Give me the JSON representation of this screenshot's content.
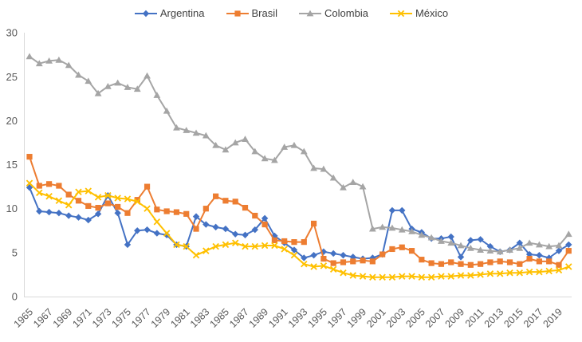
{
  "chart_data": {
    "type": "line",
    "title": "",
    "xlabel": "",
    "ylabel": "",
    "ylim": [
      0,
      30
    ],
    "y_ticks": [
      0,
      5,
      10,
      15,
      20,
      25,
      30
    ],
    "grid": false,
    "legend_position": "top-center",
    "axis_line_color": "#d9d9d9",
    "tick_label_color": "#595959",
    "legend_text_color": "#404040",
    "x": [
      1965,
      1966,
      1967,
      1968,
      1969,
      1970,
      1971,
      1972,
      1973,
      1974,
      1975,
      1976,
      1977,
      1978,
      1979,
      1980,
      1981,
      1982,
      1983,
      1984,
      1985,
      1986,
      1987,
      1988,
      1989,
      1990,
      1991,
      1992,
      1993,
      1994,
      1995,
      1996,
      1997,
      1998,
      1999,
      2000,
      2001,
      2002,
      2003,
      2004,
      2005,
      2006,
      2007,
      2008,
      2009,
      2010,
      2011,
      2012,
      2013,
      2014,
      2015,
      2016,
      2017,
      2018,
      2019,
      2020
    ],
    "x_tick_labels": [
      "1965",
      "1967",
      "1969",
      "1971",
      "1973",
      "1975",
      "1977",
      "1979",
      "1981",
      "1983",
      "1985",
      "1987",
      "1989",
      "1991",
      "1993",
      "1995",
      "1997",
      "1999",
      "2001",
      "2003",
      "2005",
      "2007",
      "2009",
      "2011",
      "2013",
      "2015",
      "2017",
      "2019"
    ],
    "series": [
      {
        "name": "Argentina",
        "color": "#4472c4",
        "marker": "diamond",
        "values": [
          12.4,
          9.7,
          9.6,
          9.5,
          9.2,
          9.0,
          8.7,
          9.4,
          11.5,
          9.5,
          5.9,
          7.5,
          7.6,
          7.2,
          7.0,
          5.9,
          5.7,
          9.1,
          8.2,
          7.9,
          7.7,
          7.1,
          7.0,
          7.6,
          8.9,
          6.9,
          6.1,
          5.3,
          4.4,
          4.7,
          5.1,
          4.9,
          4.7,
          4.5,
          4.3,
          4.4,
          4.8,
          9.8,
          9.8,
          7.7,
          7.3,
          6.6,
          6.6,
          6.8,
          4.5,
          6.4,
          6.5,
          5.7,
          5.1,
          5.3,
          6.1,
          4.8,
          4.7,
          4.4,
          5.2,
          5.9
        ]
      },
      {
        "name": "Brasil",
        "color": "#ed7d31",
        "marker": "square",
        "values": [
          15.9,
          12.6,
          12.8,
          12.6,
          11.6,
          10.9,
          10.3,
          10.1,
          10.6,
          10.2,
          9.5,
          11.0,
          12.5,
          9.9,
          9.7,
          9.6,
          9.4,
          7.7,
          10.0,
          11.4,
          10.9,
          10.8,
          10.1,
          9.2,
          8.2,
          6.4,
          6.3,
          6.2,
          6.2,
          8.3,
          4.3,
          3.8,
          3.9,
          4.0,
          4.1,
          4.0,
          4.8,
          5.4,
          5.6,
          5.2,
          4.2,
          3.8,
          3.7,
          3.9,
          3.7,
          3.6,
          3.7,
          3.9,
          4.0,
          3.9,
          3.7,
          4.3,
          4.0,
          4.0,
          3.6,
          5.2
        ]
      },
      {
        "name": "Colombia",
        "color": "#a5a5a5",
        "marker": "triangle",
        "values": [
          27.3,
          26.5,
          26.8,
          26.9,
          26.3,
          25.2,
          24.5,
          23.1,
          23.9,
          24.3,
          23.8,
          23.6,
          25.1,
          22.9,
          21.1,
          19.2,
          18.9,
          18.6,
          18.3,
          17.2,
          16.7,
          17.5,
          17.9,
          16.5,
          15.7,
          15.5,
          17.0,
          17.2,
          16.5,
          14.6,
          14.5,
          13.5,
          12.4,
          13.0,
          12.5,
          7.7,
          7.9,
          7.8,
          7.6,
          7.4,
          7.0,
          6.7,
          6.3,
          6.1,
          5.8,
          5.5,
          5.3,
          5.2,
          5.1,
          5.3,
          5.5,
          6.1,
          5.9,
          5.7,
          5.8,
          7.1
        ]
      },
      {
        "name": "México",
        "color": "#ffc000",
        "marker": "x",
        "values": [
          12.9,
          11.8,
          11.4,
          10.9,
          10.4,
          11.9,
          12.0,
          11.3,
          11.5,
          11.2,
          11.1,
          10.8,
          10.0,
          8.5,
          7.2,
          5.9,
          5.7,
          4.7,
          5.2,
          5.7,
          5.9,
          6.1,
          5.7,
          5.7,
          5.8,
          5.8,
          5.4,
          4.7,
          3.7,
          3.4,
          3.5,
          3.1,
          2.7,
          2.4,
          2.3,
          2.2,
          2.2,
          2.2,
          2.3,
          2.3,
          2.2,
          2.2,
          2.3,
          2.3,
          2.4,
          2.4,
          2.5,
          2.6,
          2.6,
          2.7,
          2.7,
          2.8,
          2.8,
          2.9,
          3.0,
          3.4
        ]
      }
    ]
  }
}
